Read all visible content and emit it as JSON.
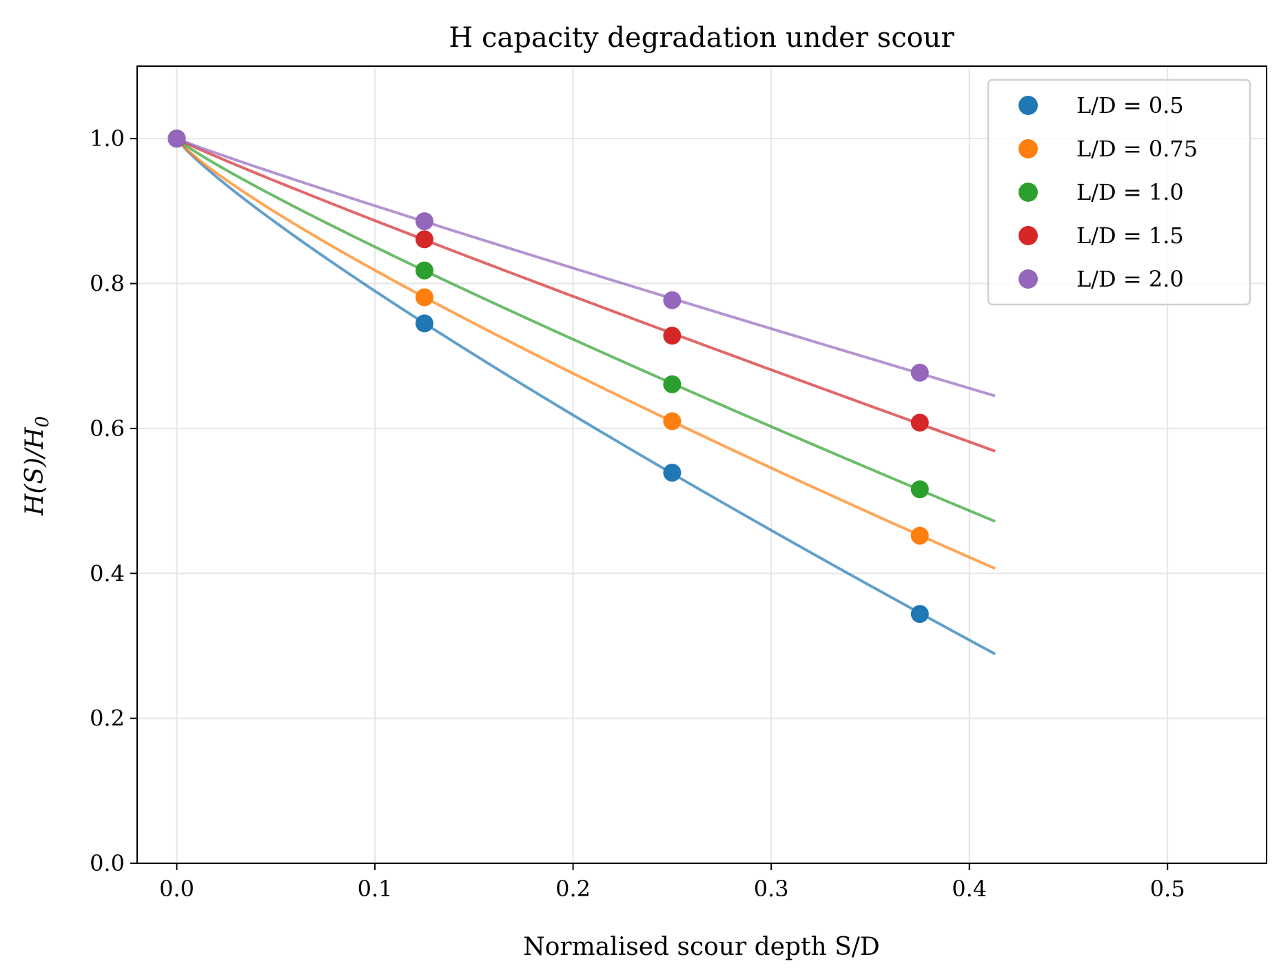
{
  "chart_data": {
    "type": "line",
    "title": "H capacity degradation under scour",
    "xlabel": "Normalised scour depth S/D",
    "ylabel": "H(S)/H",
    "ylabel_subscript": "0",
    "xlim": [
      -0.02,
      0.55
    ],
    "ylim": [
      0.0,
      1.1
    ],
    "xticks": [
      0.0,
      0.1,
      0.2,
      0.3,
      0.4,
      0.5
    ],
    "xtick_labels": [
      "0.0",
      "0.1",
      "0.2",
      "0.3",
      "0.4",
      "0.5"
    ],
    "yticks": [
      0.0,
      0.2,
      0.4,
      0.6,
      0.8,
      1.0
    ],
    "ytick_labels": [
      "0.0",
      "0.2",
      "0.4",
      "0.6",
      "0.8",
      "1.0"
    ],
    "grid": true,
    "legend_position": "top-right",
    "curve_x_max": 0.413,
    "series": [
      {
        "name": "L/D = 0.5",
        "color": "#1f77b4",
        "points_x": [
          0.0,
          0.125,
          0.25,
          0.375
        ],
        "points_y": [
          1.0,
          0.745,
          0.539,
          0.344
        ],
        "curve_end_y": 0.289
      },
      {
        "name": "L/D = 0.75",
        "color": "#ff7f0e",
        "points_x": [
          0.0,
          0.125,
          0.25,
          0.375
        ],
        "points_y": [
          1.0,
          0.781,
          0.61,
          0.452
        ],
        "curve_end_y": 0.407
      },
      {
        "name": "L/D = 1.0",
        "color": "#2ca02c",
        "points_x": [
          0.0,
          0.125,
          0.25,
          0.375
        ],
        "points_y": [
          1.0,
          0.818,
          0.661,
          0.516
        ],
        "curve_end_y": 0.472
      },
      {
        "name": "L/D = 1.5",
        "color": "#d62728",
        "points_x": [
          0.0,
          0.125,
          0.25,
          0.375
        ],
        "points_y": [
          1.0,
          0.861,
          0.728,
          0.608
        ],
        "curve_end_y": 0.57
      },
      {
        "name": "L/D = 2.0",
        "color": "#9467bd",
        "points_x": [
          0.0,
          0.125,
          0.25,
          0.375
        ],
        "points_y": [
          1.0,
          0.886,
          0.777,
          0.677
        ],
        "curve_end_y": 0.646
      }
    ]
  }
}
